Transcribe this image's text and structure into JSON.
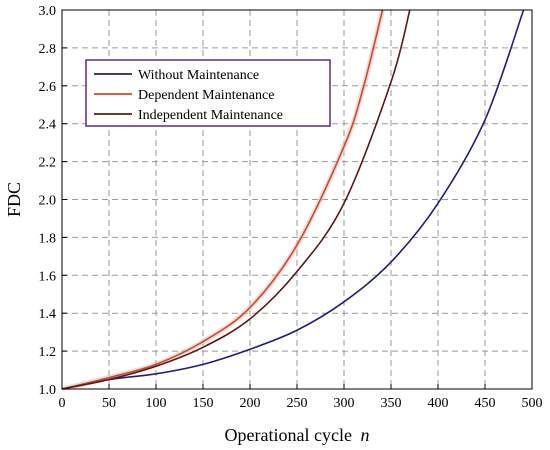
{
  "chart_data": {
    "type": "line",
    "xlabel": "Operational cycle",
    "xlabel_italic": "n",
    "ylabel": "FDC",
    "xlim": [
      0,
      500
    ],
    "ylim": [
      1.0,
      3.0
    ],
    "xticks": [
      "0",
      "50",
      "100",
      "150",
      "200",
      "250",
      "300",
      "350",
      "400",
      "450",
      "500"
    ],
    "yticks": [
      "1.0",
      "1.2",
      "1.4",
      "1.6",
      "1.8",
      "2.0",
      "2.2",
      "2.4",
      "2.6",
      "2.8",
      "3.0"
    ],
    "grid": true,
    "legend_position": "top-left",
    "legend_border_color": "#5b2a86",
    "series": [
      {
        "name": "Without Maintenance",
        "color": "#1f1f7a",
        "x": [
          0,
          50,
          100,
          150,
          200,
          250,
          300,
          350,
          400,
          450,
          491
        ],
        "y": [
          1.0,
          1.05,
          1.08,
          1.13,
          1.21,
          1.31,
          1.46,
          1.67,
          1.98,
          2.42,
          3.0
        ]
      },
      {
        "name": "Dependent Maintenance",
        "color": "#c0502a",
        "x": [
          0,
          50,
          100,
          150,
          200,
          250,
          300,
          320,
          341
        ],
        "y": [
          1.0,
          1.06,
          1.13,
          1.25,
          1.43,
          1.76,
          2.28,
          2.58,
          3.0
        ]
      },
      {
        "name": "Independent Maintenance",
        "color": "#5a1a14",
        "x": [
          0,
          50,
          100,
          150,
          200,
          250,
          300,
          350,
          370
        ],
        "y": [
          1.0,
          1.05,
          1.12,
          1.22,
          1.37,
          1.62,
          1.98,
          2.62,
          3.0
        ]
      }
    ]
  }
}
